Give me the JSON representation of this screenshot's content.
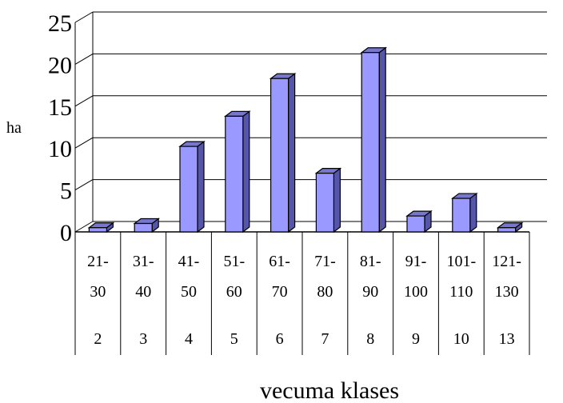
{
  "chart_data": {
    "type": "bar",
    "title": "",
    "xlabel": "vecuma klases",
    "ylabel": "ha",
    "ylim": [
      0,
      25
    ],
    "yticks": [
      0,
      5,
      10,
      15,
      20,
      25
    ],
    "grid": true,
    "legend": "none",
    "bar_color": "#9999ff",
    "categories": [
      {
        "range_top": "21-",
        "range_bottom": "30",
        "class": "2"
      },
      {
        "range_top": "31-",
        "range_bottom": "40",
        "class": "3"
      },
      {
        "range_top": "41-",
        "range_bottom": "50",
        "class": "4"
      },
      {
        "range_top": "51-",
        "range_bottom": "60",
        "class": "5"
      },
      {
        "range_top": "61-",
        "range_bottom": "70",
        "class": "6"
      },
      {
        "range_top": "71-",
        "range_bottom": "80",
        "class": "7"
      },
      {
        "range_top": "81-",
        "range_bottom": "90",
        "class": "8"
      },
      {
        "range_top": "91-",
        "range_bottom": "100",
        "class": "9"
      },
      {
        "range_top": "101-",
        "range_bottom": "110",
        "class": "10"
      },
      {
        "range_top": "121-",
        "range_bottom": "130",
        "class": "13"
      }
    ],
    "values": [
      0.5,
      1.0,
      10.2,
      13.8,
      18.3,
      7.0,
      21.4,
      1.9,
      4.0,
      0.5
    ]
  }
}
